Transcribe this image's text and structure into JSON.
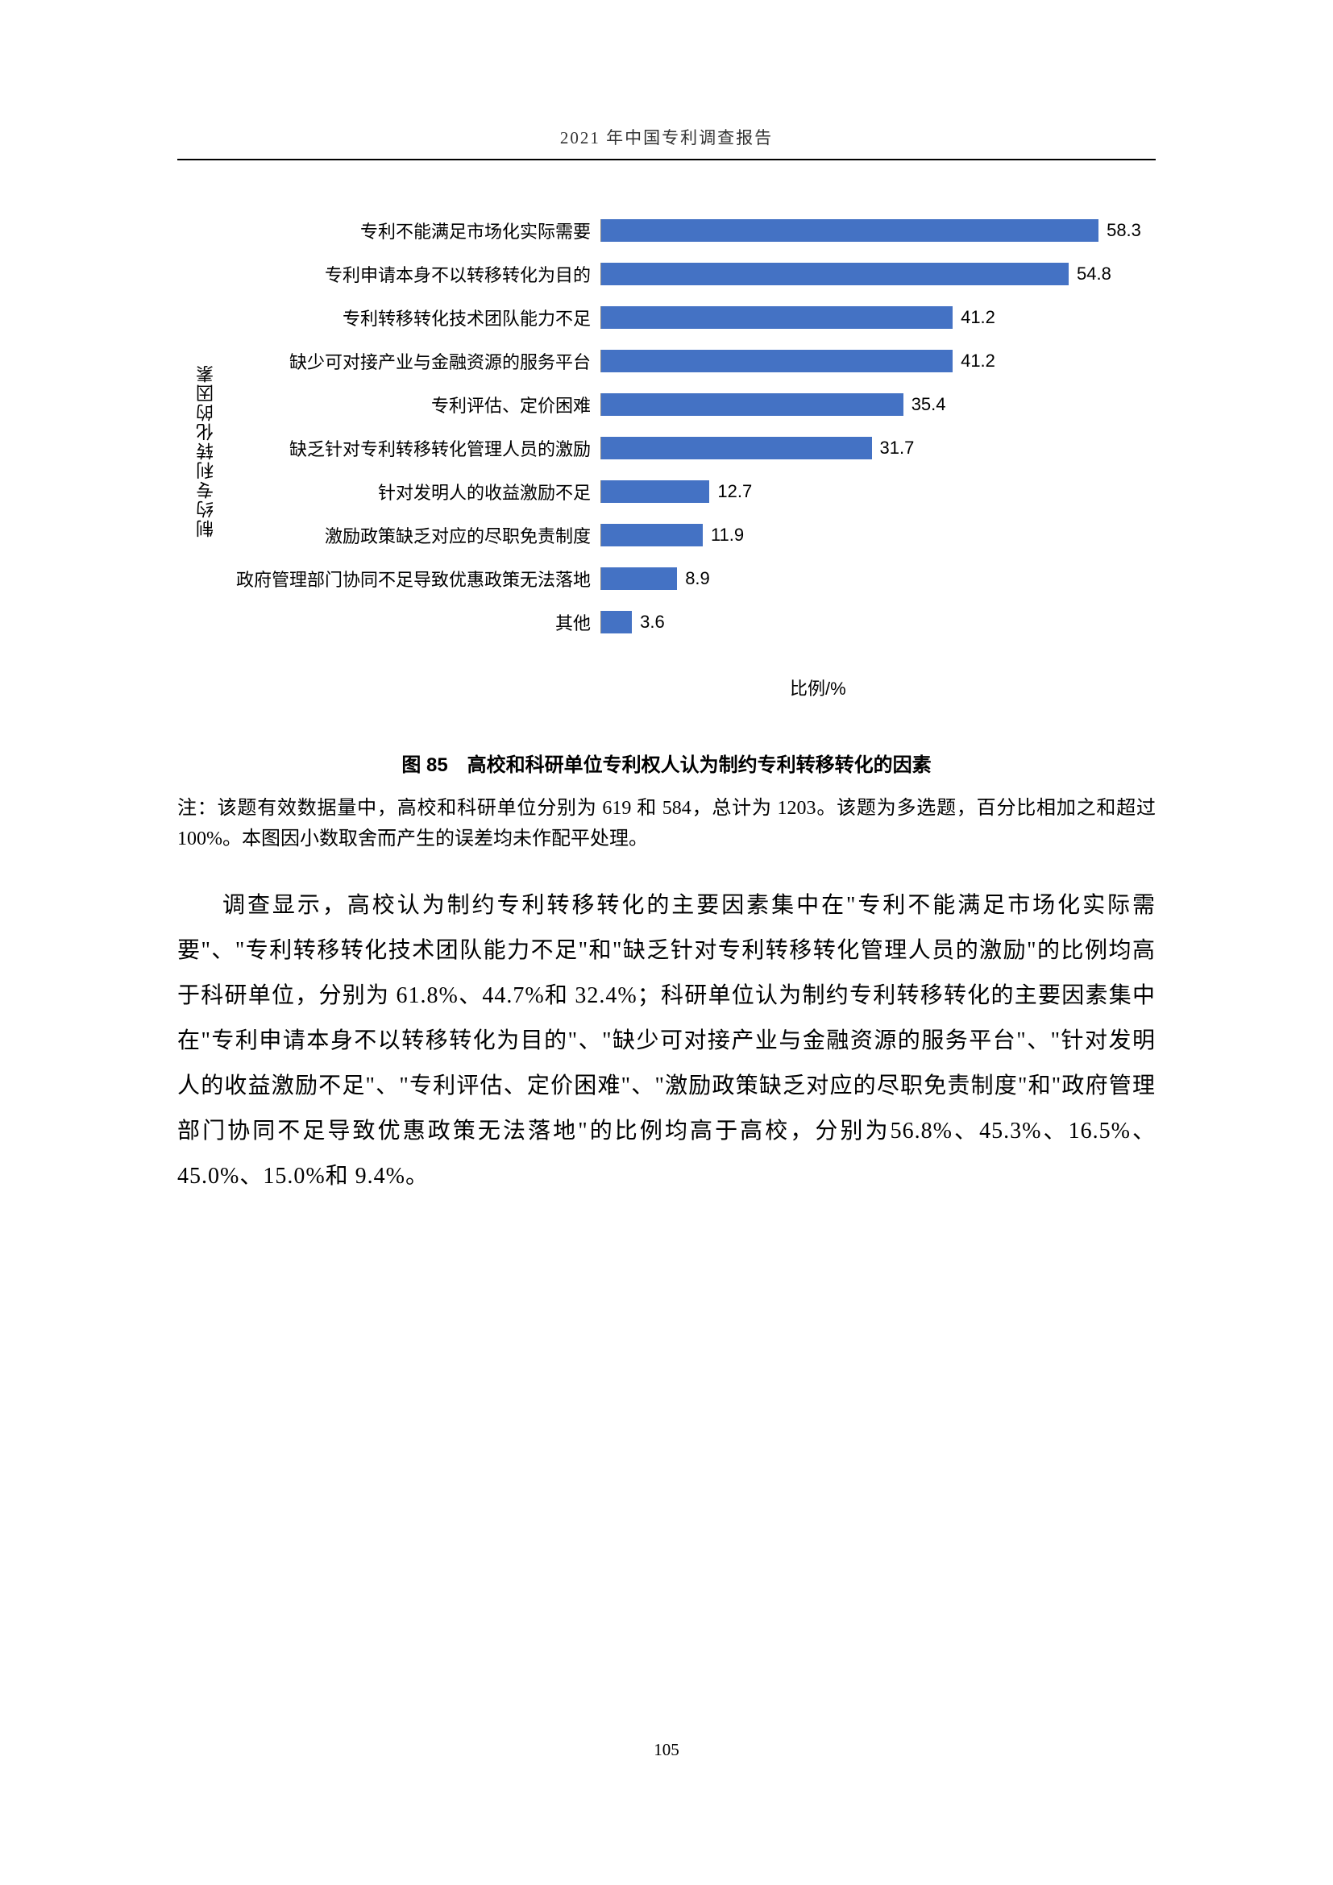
{
  "header": {
    "title": "2021 年中国专利调查报告"
  },
  "chart": {
    "type": "bar",
    "y_axis_title": "制约专利转化的因素",
    "x_axis_label": "比例/%",
    "bar_color": "#4472c4",
    "max_value": 65,
    "bars": [
      {
        "label": "专利不能满足市场化实际需要",
        "value": 58.3
      },
      {
        "label": "专利申请本身不以转移转化为目的",
        "value": 54.8
      },
      {
        "label": "专利转移转化技术团队能力不足",
        "value": 41.2
      },
      {
        "label": "缺少可对接产业与金融资源的服务平台",
        "value": 41.2
      },
      {
        "label": "专利评估、定价困难",
        "value": 35.4
      },
      {
        "label": "缺乏针对专利转移转化管理人员的激励",
        "value": 31.7
      },
      {
        "label": "针对发明人的收益激励不足",
        "value": 12.7
      },
      {
        "label": "激励政策缺乏对应的尽职免责制度",
        "value": 11.9
      },
      {
        "label": "政府管理部门协同不足导致优惠政策无法落地",
        "value": 8.9
      },
      {
        "label": "其他",
        "value": 3.6
      }
    ]
  },
  "figure_caption": "图 85　高校和科研单位专利权人认为制约专利转移转化的因素",
  "note": "注：该题有效数据量中，高校和科研单位分别为 619 和 584，总计为 1203。该题为多选题，百分比相加之和超过 100%。本图因小数取舍而产生的误差均未作配平处理。",
  "body": "调查显示，高校认为制约专利转移转化的主要因素集中在\"专利不能满足市场化实际需要\"、\"专利转移转化技术团队能力不足\"和\"缺乏针对专利转移转化管理人员的激励\"的比例均高于科研单位，分别为 61.8%、44.7%和 32.4%；科研单位认为制约专利转移转化的主要因素集中在\"专利申请本身不以转移转化为目的\"、\"缺少可对接产业与金融资源的服务平台\"、\"针对发明人的收益激励不足\"、\"专利评估、定价困难\"、\"激励政策缺乏对应的尽职免责制度\"和\"政府管理部门协同不足导致优惠政策无法落地\"的比例均高于高校，分别为56.8%、45.3%、16.5%、45.0%、15.0%和 9.4%。",
  "page_number": "105"
}
